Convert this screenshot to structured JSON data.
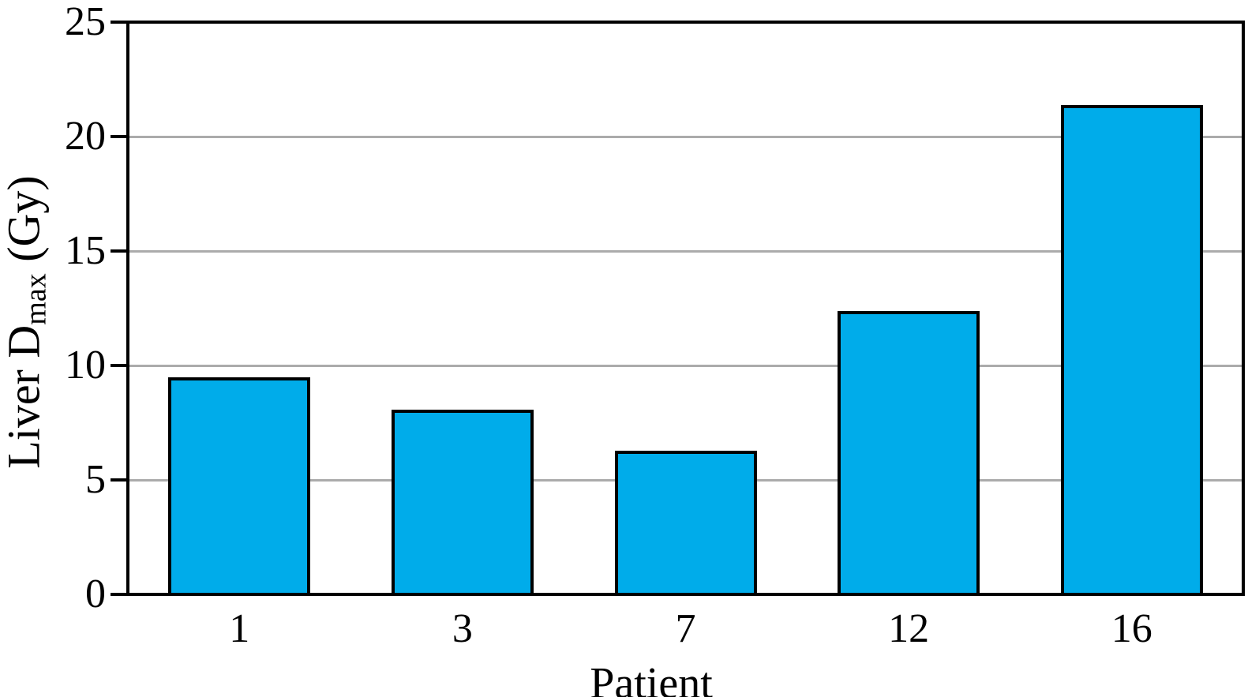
{
  "chart_data": {
    "type": "bar",
    "categories": [
      "1",
      "3",
      "7",
      "12",
      "16"
    ],
    "values": [
      9.4,
      8.0,
      6.2,
      12.3,
      21.3
    ],
    "xlabel": "Patient",
    "ylabel": {
      "main": "Liver D",
      "sub": "max",
      "unit": " (Gy)"
    },
    "ylim": [
      0,
      25
    ],
    "yticks": [
      0,
      5,
      10,
      15,
      20,
      25
    ],
    "grid": "horizontal",
    "legend": "none",
    "frame": "full-box",
    "colors": {
      "bar_fill": "#00ACEA",
      "bar_border": "#000000",
      "gridline": "#ABABAB",
      "axis": "#000000",
      "text": "#000000",
      "background": "#FFFFFF"
    }
  }
}
